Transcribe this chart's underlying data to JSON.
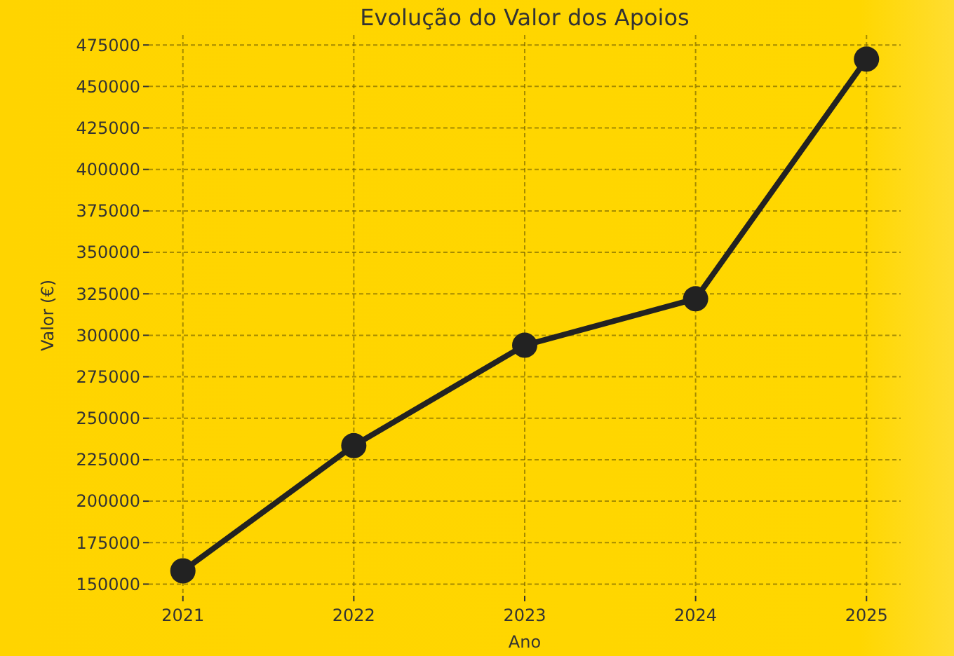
{
  "chart_data": {
    "type": "line",
    "title": "Evolução do Valor dos Apoios",
    "xlabel": "Ano",
    "ylabel": "Valor (€)",
    "x": [
      2021,
      2022,
      2023,
      2024,
      2025
    ],
    "series": [
      {
        "color": "#222222",
        "values": [
          158000,
          233500,
          294000,
          322000,
          466500
        ]
      }
    ],
    "xlim": [
      2020.8,
      2025.2
    ],
    "xticks": [
      2021,
      2022,
      2023,
      2024,
      2025
    ],
    "ylim": [
      143000,
      481000
    ],
    "yticks": [
      150000,
      175000,
      200000,
      225000,
      250000,
      275000,
      300000,
      325000,
      350000,
      375000,
      400000,
      425000,
      450000,
      475000
    ],
    "grid": true,
    "marker": "circle",
    "line_style": "solid"
  }
}
